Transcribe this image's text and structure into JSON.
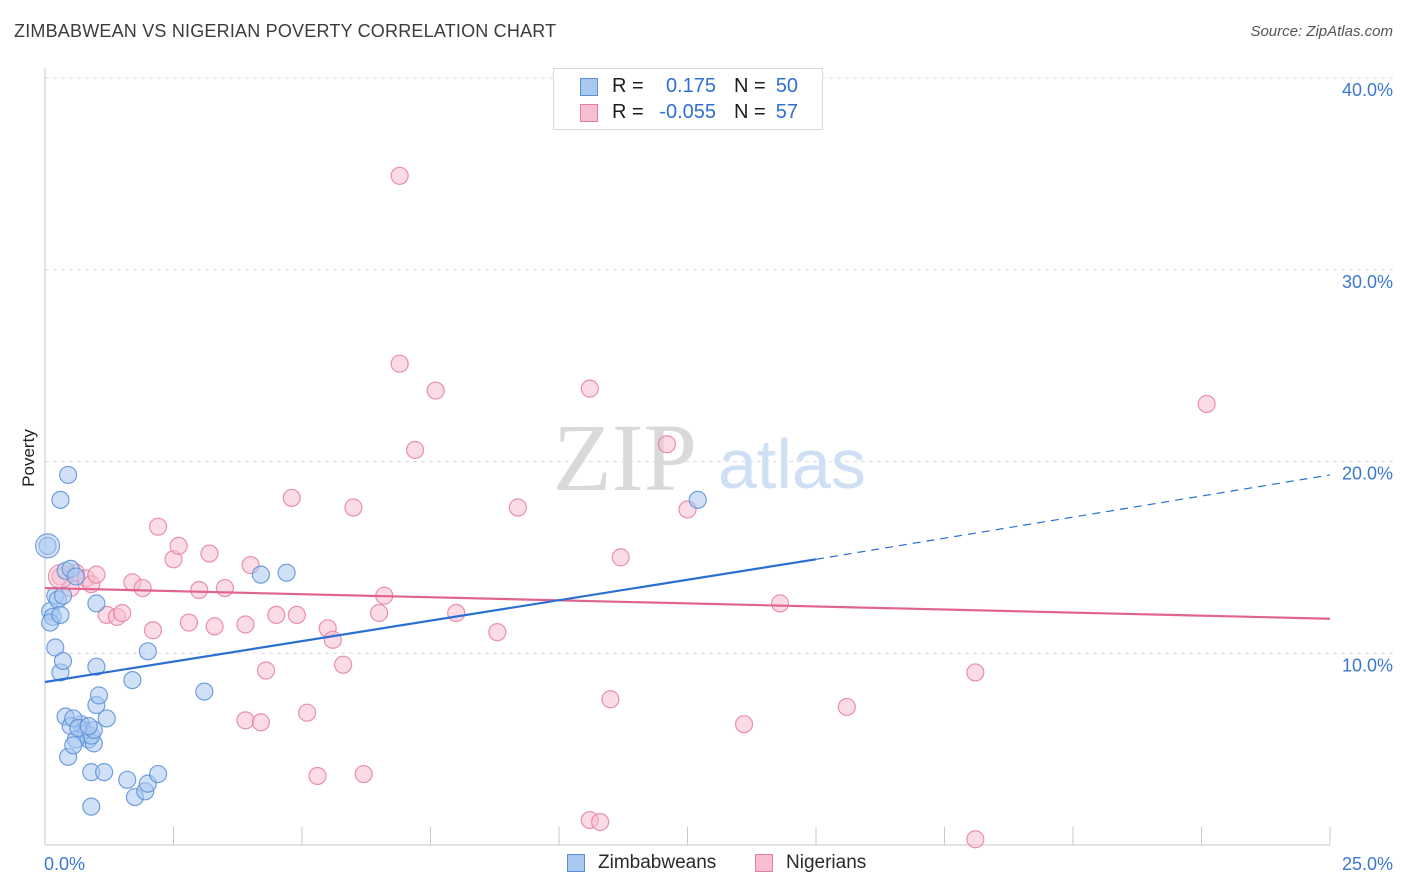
{
  "title": "ZIMBABWEAN VS NIGERIAN POVERTY CORRELATION CHART",
  "source": "Source: ZipAtlas.com",
  "watermark": {
    "part1": "ZIP",
    "part2": "atlas"
  },
  "colors": {
    "blue_fill": "#a9c8f0",
    "blue_stroke": "#5b8fd6",
    "blue_line": "#2a6fd1",
    "pink_fill": "#f7bdd0",
    "pink_stroke": "#e47fa1",
    "pink_line": "#e0648e",
    "axis_text": "#3a78d0",
    "grid": "#dcdcdc"
  },
  "legend_stats": [
    {
      "series": "Zimbabweans",
      "r_label": "R =",
      "r_value": "0.175",
      "n_label": "N =",
      "n_value": "50"
    },
    {
      "series": "Nigerians",
      "r_label": "R =",
      "r_value": "-0.055",
      "n_label": "N =",
      "n_value": "57"
    }
  ],
  "chart_data": {
    "type": "scatter",
    "title": "ZIMBABWEAN VS NIGERIAN POVERTY CORRELATION CHART",
    "xlabel": "",
    "ylabel": "Poverty",
    "xlim": [
      0,
      25
    ],
    "ylim": [
      0,
      40
    ],
    "x_tick_labels": [
      "0.0%",
      "25.0%"
    ],
    "y_ticks": [
      10,
      20,
      30,
      40
    ],
    "y_tick_labels": [
      "10.0%",
      "20.0%",
      "30.0%",
      "40.0%"
    ],
    "grid": true,
    "legend_position": "bottom-center",
    "series": [
      {
        "name": "Zimbabweans",
        "trend": {
          "x0": 0,
          "y0": 8.5,
          "x1": 15,
          "y1": 14.9,
          "dashed_to_x": 25,
          "dashed_to_y": 19.3
        },
        "points": [
          [
            0.05,
            15.6
          ],
          [
            0.1,
            12.2
          ],
          [
            0.15,
            11.9
          ],
          [
            0.1,
            11.6
          ],
          [
            0.2,
            13.0
          ],
          [
            0.25,
            12.8
          ],
          [
            0.3,
            12.0
          ],
          [
            0.35,
            13.0
          ],
          [
            0.2,
            10.3
          ],
          [
            0.3,
            9.0
          ],
          [
            0.35,
            9.6
          ],
          [
            0.3,
            18.0
          ],
          [
            0.45,
            19.3
          ],
          [
            0.4,
            14.3
          ],
          [
            0.5,
            14.4
          ],
          [
            0.6,
            14.0
          ],
          [
            1.0,
            12.6
          ],
          [
            0.7,
            6.3
          ],
          [
            0.75,
            6.0
          ],
          [
            0.8,
            5.8
          ],
          [
            0.85,
            5.5
          ],
          [
            0.95,
            5.3
          ],
          [
            0.9,
            5.7
          ],
          [
            0.4,
            6.7
          ],
          [
            0.5,
            6.2
          ],
          [
            0.55,
            6.6
          ],
          [
            0.45,
            4.6
          ],
          [
            0.95,
            6.0
          ],
          [
            1.2,
            6.6
          ],
          [
            1.0,
            7.3
          ],
          [
            1.05,
            7.8
          ],
          [
            1.0,
            9.3
          ],
          [
            1.7,
            8.6
          ],
          [
            2.0,
            10.1
          ],
          [
            3.1,
            8.0
          ],
          [
            4.2,
            14.1
          ],
          [
            4.7,
            14.2
          ],
          [
            0.9,
            3.8
          ],
          [
            1.15,
            3.8
          ],
          [
            1.6,
            3.4
          ],
          [
            1.75,
            2.5
          ],
          [
            1.95,
            2.8
          ],
          [
            2.0,
            3.2
          ],
          [
            2.2,
            3.7
          ],
          [
            0.9,
            2.0
          ],
          [
            12.7,
            18.0
          ],
          [
            0.6,
            5.5
          ],
          [
            0.65,
            6.1
          ],
          [
            0.55,
            5.2
          ],
          [
            0.85,
            6.2
          ]
        ],
        "large_points": [
          [
            0.05,
            15.6
          ]
        ]
      },
      {
        "name": "Nigerians",
        "trend": {
          "x0": 0,
          "y0": 13.4,
          "x1": 25,
          "y1": 11.8
        },
        "points": [
          [
            0.3,
            14.0
          ],
          [
            0.5,
            13.4
          ],
          [
            0.6,
            14.2
          ],
          [
            0.8,
            13.9
          ],
          [
            0.9,
            13.6
          ],
          [
            1.0,
            14.1
          ],
          [
            1.2,
            12.0
          ],
          [
            1.4,
            11.9
          ],
          [
            1.5,
            12.1
          ],
          [
            1.7,
            13.7
          ],
          [
            1.9,
            13.4
          ],
          [
            2.1,
            11.2
          ],
          [
            2.2,
            16.6
          ],
          [
            2.5,
            14.9
          ],
          [
            2.6,
            15.6
          ],
          [
            2.8,
            11.6
          ],
          [
            3.0,
            13.3
          ],
          [
            3.2,
            15.2
          ],
          [
            3.3,
            11.4
          ],
          [
            3.5,
            13.4
          ],
          [
            3.9,
            6.5
          ],
          [
            3.9,
            11.5
          ],
          [
            4.0,
            14.6
          ],
          [
            4.2,
            6.4
          ],
          [
            4.3,
            9.1
          ],
          [
            4.5,
            12.0
          ],
          [
            4.8,
            18.1
          ],
          [
            4.9,
            12.0
          ],
          [
            5.1,
            6.9
          ],
          [
            5.3,
            3.6
          ],
          [
            5.5,
            11.3
          ],
          [
            5.6,
            10.7
          ],
          [
            5.8,
            9.4
          ],
          [
            6.0,
            17.6
          ],
          [
            6.2,
            3.7
          ],
          [
            6.5,
            12.1
          ],
          [
            6.6,
            13.0
          ],
          [
            6.9,
            25.1
          ],
          [
            6.9,
            34.9
          ],
          [
            7.2,
            20.6
          ],
          [
            7.6,
            23.7
          ],
          [
            8.0,
            12.1
          ],
          [
            8.8,
            11.1
          ],
          [
            9.2,
            17.6
          ],
          [
            10.6,
            1.3
          ],
          [
            10.6,
            23.8
          ],
          [
            10.8,
            1.2
          ],
          [
            11.0,
            7.6
          ],
          [
            11.2,
            15.0
          ],
          [
            12.1,
            20.9
          ],
          [
            12.5,
            17.5
          ],
          [
            13.6,
            6.3
          ],
          [
            14.3,
            12.6
          ],
          [
            15.6,
            7.2
          ],
          [
            18.1,
            9.0
          ],
          [
            18.1,
            0.3
          ],
          [
            22.6,
            23.0
          ]
        ],
        "large_points": [
          [
            0.3,
            14.0
          ]
        ]
      }
    ]
  }
}
